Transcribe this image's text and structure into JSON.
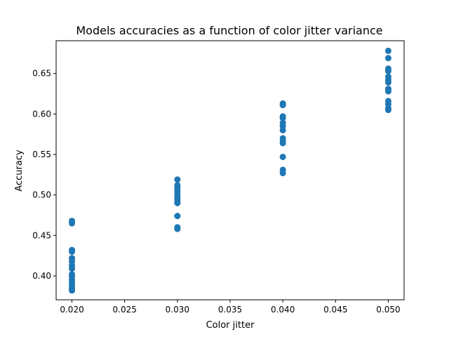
{
  "chart_data": {
    "type": "scatter",
    "title": "Models accuracies as a function of color jitter variance",
    "xlabel": "Color jitter",
    "ylabel": "Accuracy",
    "xlim": [
      0.0185,
      0.0515
    ],
    "ylim": [
      0.3705,
      0.6905
    ],
    "xticks": [
      "0.020",
      "0.025",
      "0.030",
      "0.035",
      "0.040",
      "0.045",
      "0.050"
    ],
    "yticks": [
      "0.40",
      "0.45",
      "0.50",
      "0.55",
      "0.60",
      "0.65"
    ],
    "grid": false,
    "marker_color": "#1f77b4",
    "points": [
      {
        "x": 0.02,
        "y": 0.468
      },
      {
        "x": 0.02,
        "y": 0.465
      },
      {
        "x": 0.02,
        "y": 0.432
      },
      {
        "x": 0.02,
        "y": 0.43
      },
      {
        "x": 0.02,
        "y": 0.422
      },
      {
        "x": 0.02,
        "y": 0.418
      },
      {
        "x": 0.02,
        "y": 0.413
      },
      {
        "x": 0.02,
        "y": 0.409
      },
      {
        "x": 0.02,
        "y": 0.402
      },
      {
        "x": 0.02,
        "y": 0.399
      },
      {
        "x": 0.02,
        "y": 0.395
      },
      {
        "x": 0.02,
        "y": 0.391
      },
      {
        "x": 0.02,
        "y": 0.388
      },
      {
        "x": 0.02,
        "y": 0.385
      },
      {
        "x": 0.02,
        "y": 0.382
      },
      {
        "x": 0.03,
        "y": 0.519
      },
      {
        "x": 0.03,
        "y": 0.512
      },
      {
        "x": 0.03,
        "y": 0.509
      },
      {
        "x": 0.03,
        "y": 0.505
      },
      {
        "x": 0.03,
        "y": 0.501
      },
      {
        "x": 0.03,
        "y": 0.498
      },
      {
        "x": 0.03,
        "y": 0.495
      },
      {
        "x": 0.03,
        "y": 0.492
      },
      {
        "x": 0.03,
        "y": 0.49
      },
      {
        "x": 0.03,
        "y": 0.474
      },
      {
        "x": 0.03,
        "y": 0.46
      },
      {
        "x": 0.03,
        "y": 0.458
      },
      {
        "x": 0.04,
        "y": 0.613
      },
      {
        "x": 0.04,
        "y": 0.611
      },
      {
        "x": 0.04,
        "y": 0.597
      },
      {
        "x": 0.04,
        "y": 0.595
      },
      {
        "x": 0.04,
        "y": 0.589
      },
      {
        "x": 0.04,
        "y": 0.585
      },
      {
        "x": 0.04,
        "y": 0.58
      },
      {
        "x": 0.04,
        "y": 0.57
      },
      {
        "x": 0.04,
        "y": 0.567
      },
      {
        "x": 0.04,
        "y": 0.564
      },
      {
        "x": 0.04,
        "y": 0.547
      },
      {
        "x": 0.04,
        "y": 0.531
      },
      {
        "x": 0.04,
        "y": 0.527
      },
      {
        "x": 0.05,
        "y": 0.678
      },
      {
        "x": 0.05,
        "y": 0.669
      },
      {
        "x": 0.05,
        "y": 0.656
      },
      {
        "x": 0.05,
        "y": 0.653
      },
      {
        "x": 0.05,
        "y": 0.646
      },
      {
        "x": 0.05,
        "y": 0.642
      },
      {
        "x": 0.05,
        "y": 0.639
      },
      {
        "x": 0.05,
        "y": 0.631
      },
      {
        "x": 0.05,
        "y": 0.628
      },
      {
        "x": 0.05,
        "y": 0.616
      },
      {
        "x": 0.05,
        "y": 0.612
      },
      {
        "x": 0.05,
        "y": 0.607
      },
      {
        "x": 0.05,
        "y": 0.605
      }
    ]
  }
}
